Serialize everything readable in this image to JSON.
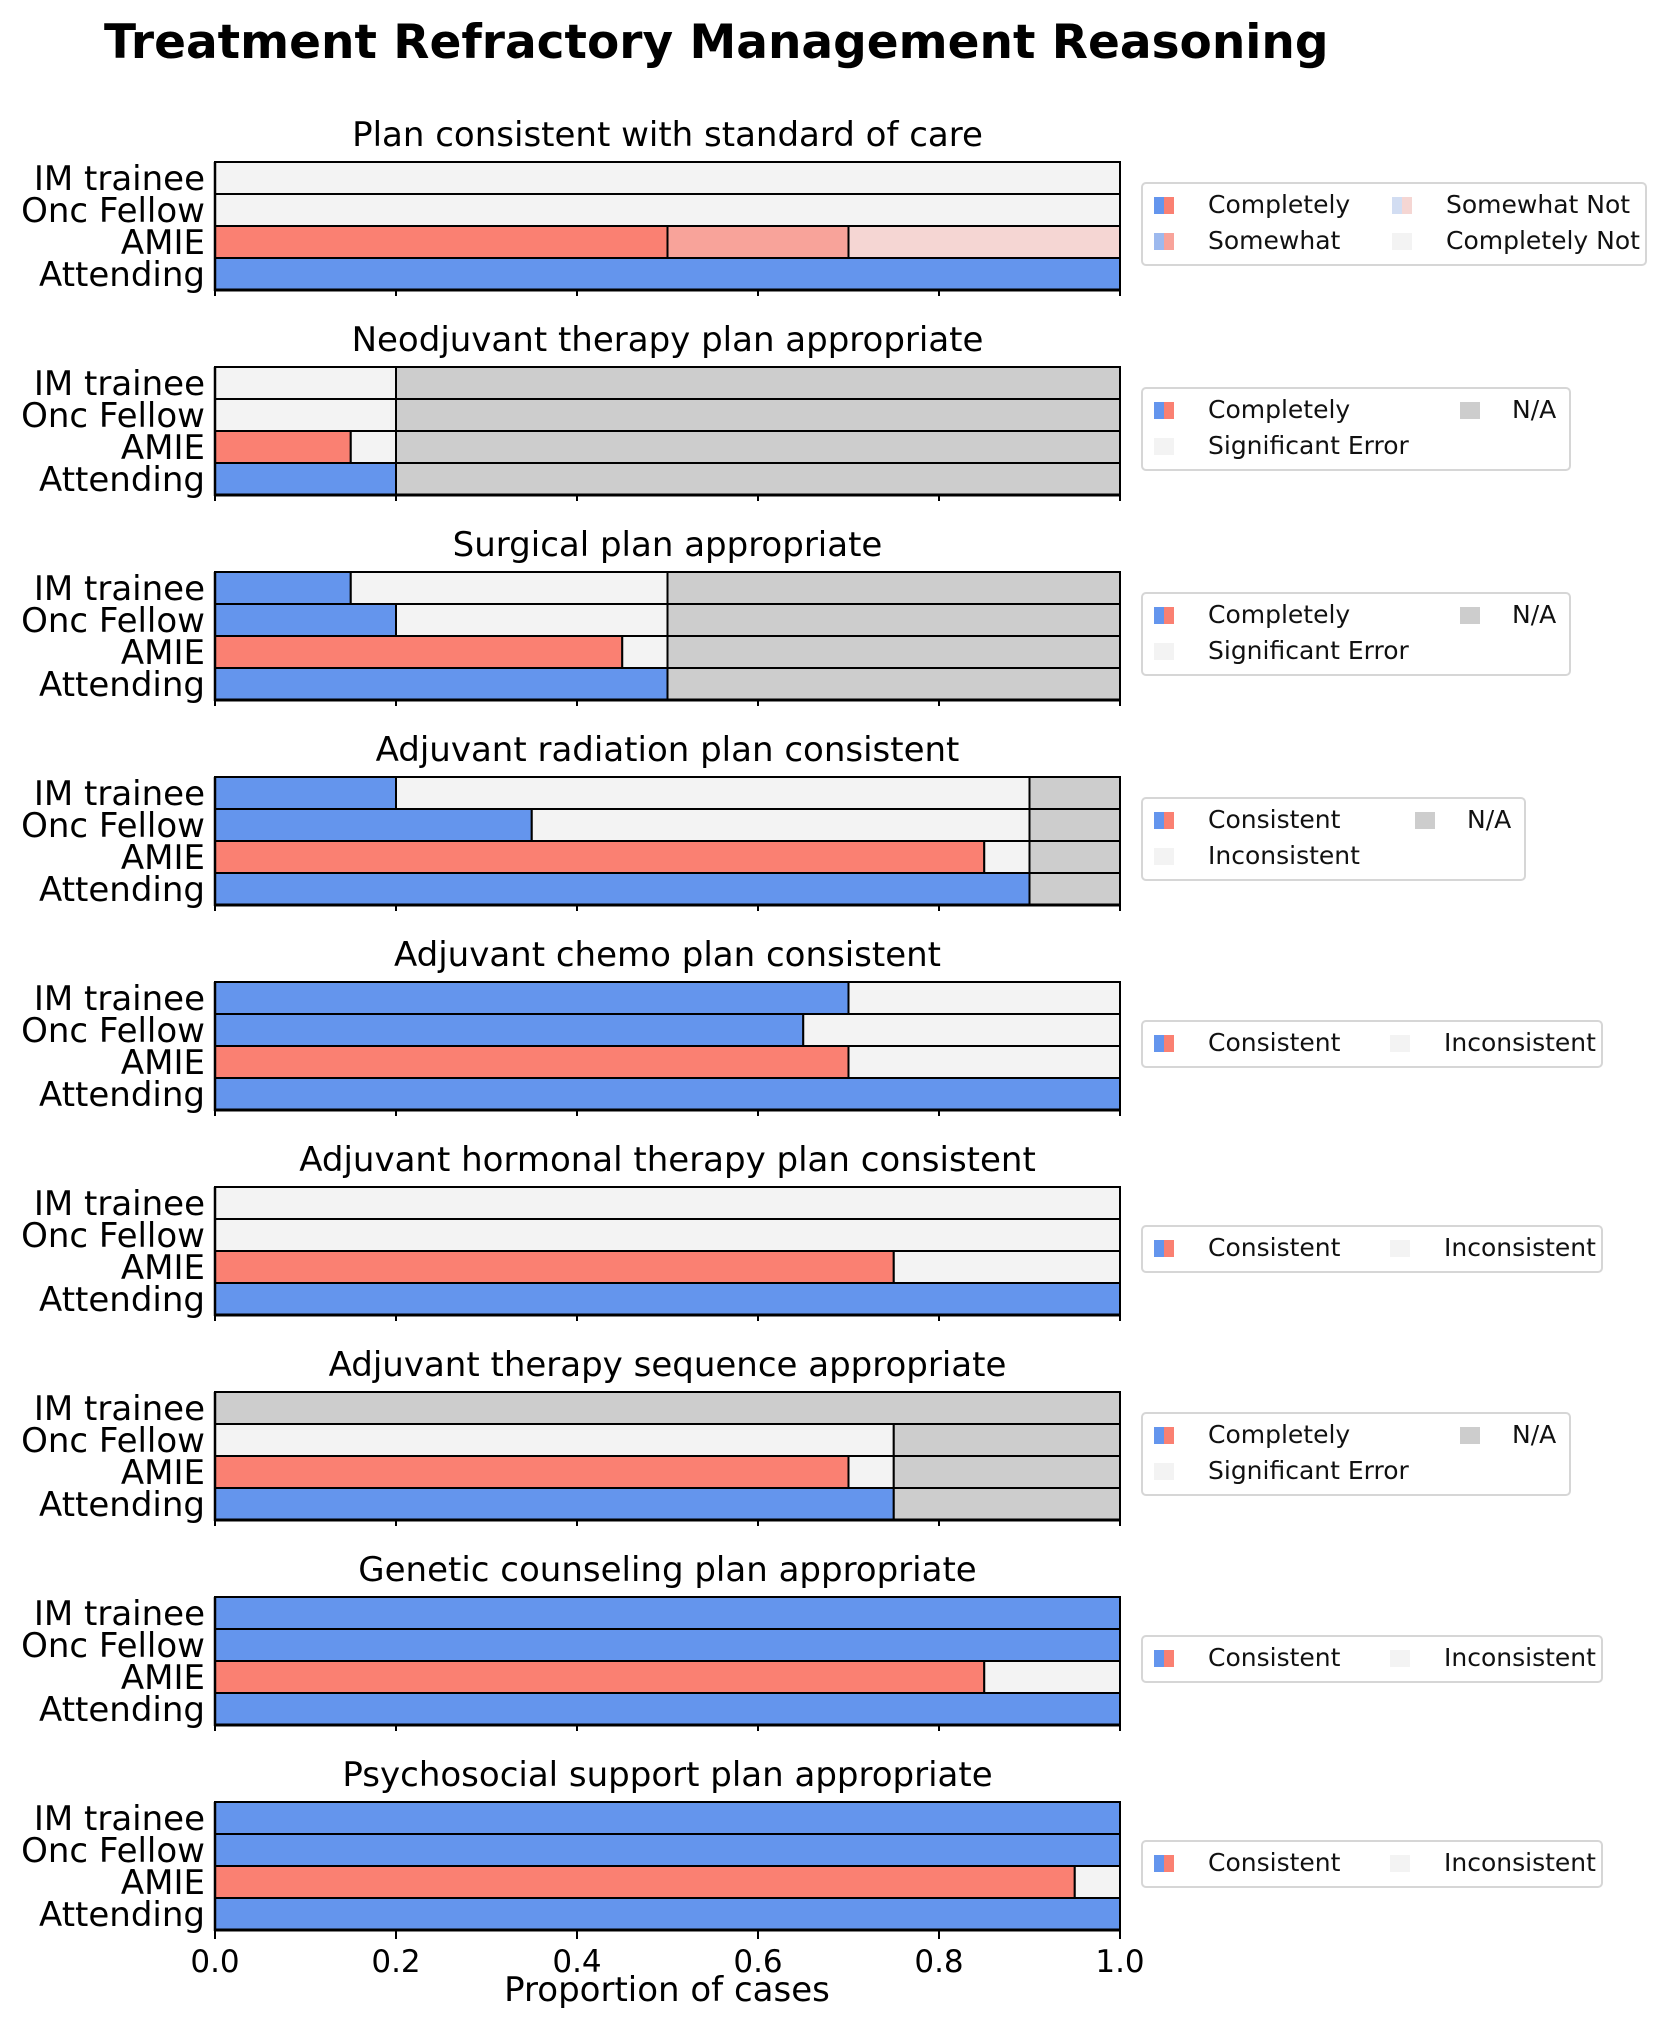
{
  "title": "Treatment Refractory Management Reasoning",
  "colors": {
    "human": "#6495ED",
    "amie": "#FA8072",
    "amie_somewhat": "#F8A39A",
    "amie_somewhat_not": "#F5D6D3",
    "human_somewhat": "#9DB9EE",
    "human_somewhat_not": "#D2DDF2",
    "completely_not": "#F3F3F3",
    "na": "#CDCDCD"
  },
  "chart_data": [
    {
      "type": "bar",
      "orientation": "horizontal-stacked",
      "title": "Plan consistent with standard of care",
      "categories": [
        "IM trainee",
        "Onc Fellow",
        "AMIE",
        "Attending"
      ],
      "legend": [
        {
          "label": "Completely",
          "swatch": "split"
        },
        {
          "label": "Somewhat",
          "swatch": "split-somewhat"
        },
        {
          "label": "Somewhat Not",
          "swatch": "split-somewhat-not"
        },
        {
          "label": "Completely Not",
          "swatch": "completely_not"
        }
      ],
      "legend_columns": 2,
      "series": [
        {
          "name": "Completely",
          "values": [
            0.0,
            0.0,
            0.5,
            1.0
          ]
        },
        {
          "name": "Somewhat",
          "values": [
            0.0,
            0.0,
            0.2,
            0.0
          ]
        },
        {
          "name": "Somewhat Not",
          "values": [
            0.0,
            0.0,
            0.3,
            0.0
          ]
        },
        {
          "name": "Completely Not",
          "values": [
            1.0,
            1.0,
            0.0,
            0.0
          ]
        }
      ],
      "xlim": [
        0,
        1
      ]
    },
    {
      "type": "bar",
      "orientation": "horizontal-stacked",
      "title": "Neodjuvant therapy plan appropriate",
      "categories": [
        "IM trainee",
        "Onc Fellow",
        "AMIE",
        "Attending"
      ],
      "legend": [
        {
          "label": "Completely",
          "swatch": "split"
        },
        {
          "label": "Significant Error",
          "swatch": "completely_not"
        },
        {
          "label": "N/A",
          "swatch": "na"
        }
      ],
      "legend_columns": 2,
      "series": [
        {
          "name": "Completely",
          "values": [
            0.0,
            0.0,
            0.15,
            0.2
          ]
        },
        {
          "name": "Significant Error",
          "values": [
            0.2,
            0.2,
            0.05,
            0.0
          ]
        },
        {
          "name": "N/A",
          "values": [
            0.8,
            0.8,
            0.8,
            0.8
          ]
        }
      ],
      "xlim": [
        0,
        1
      ]
    },
    {
      "type": "bar",
      "orientation": "horizontal-stacked",
      "title": "Surgical plan appropriate",
      "categories": [
        "IM trainee",
        "Onc Fellow",
        "AMIE",
        "Attending"
      ],
      "legend": [
        {
          "label": "Completely",
          "swatch": "split"
        },
        {
          "label": "Significant Error",
          "swatch": "completely_not"
        },
        {
          "label": "N/A",
          "swatch": "na"
        }
      ],
      "legend_columns": 2,
      "series": [
        {
          "name": "Completely",
          "values": [
            0.15,
            0.2,
            0.45,
            0.5
          ]
        },
        {
          "name": "Significant Error",
          "values": [
            0.35,
            0.3,
            0.05,
            0.0
          ]
        },
        {
          "name": "N/A",
          "values": [
            0.5,
            0.5,
            0.5,
            0.5
          ]
        }
      ],
      "xlim": [
        0,
        1
      ]
    },
    {
      "type": "bar",
      "orientation": "horizontal-stacked",
      "title": "Adjuvant radiation plan consistent",
      "categories": [
        "IM trainee",
        "Onc Fellow",
        "AMIE",
        "Attending"
      ],
      "legend": [
        {
          "label": "Consistent",
          "swatch": "split"
        },
        {
          "label": "Inconsistent",
          "swatch": "completely_not"
        },
        {
          "label": "N/A",
          "swatch": "na"
        }
      ],
      "legend_columns": 2,
      "series": [
        {
          "name": "Consistent",
          "values": [
            0.2,
            0.35,
            0.85,
            0.9
          ]
        },
        {
          "name": "Inconsistent",
          "values": [
            0.7,
            0.55,
            0.05,
            0.0
          ]
        },
        {
          "name": "N/A",
          "values": [
            0.1,
            0.1,
            0.1,
            0.1
          ]
        }
      ],
      "xlim": [
        0,
        1
      ]
    },
    {
      "type": "bar",
      "orientation": "horizontal-stacked",
      "title": "Adjuvant chemo plan consistent",
      "categories": [
        "IM trainee",
        "Onc Fellow",
        "AMIE",
        "Attending"
      ],
      "legend": [
        {
          "label": "Consistent",
          "swatch": "split"
        },
        {
          "label": "Inconsistent",
          "swatch": "completely_not"
        }
      ],
      "legend_columns": 2,
      "series": [
        {
          "name": "Consistent",
          "values": [
            0.7,
            0.65,
            0.7,
            1.0
          ]
        },
        {
          "name": "Inconsistent",
          "values": [
            0.3,
            0.35,
            0.3,
            0.0
          ]
        }
      ],
      "xlim": [
        0,
        1
      ]
    },
    {
      "type": "bar",
      "orientation": "horizontal-stacked",
      "title": "Adjuvant hormonal therapy plan consistent",
      "categories": [
        "IM trainee",
        "Onc Fellow",
        "AMIE",
        "Attending"
      ],
      "legend": [
        {
          "label": "Consistent",
          "swatch": "split"
        },
        {
          "label": "Inconsistent",
          "swatch": "completely_not"
        }
      ],
      "legend_columns": 2,
      "series": [
        {
          "name": "Consistent",
          "values": [
            0.0,
            0.0,
            0.75,
            1.0
          ]
        },
        {
          "name": "Inconsistent",
          "values": [
            1.0,
            1.0,
            0.25,
            0.0
          ]
        }
      ],
      "xlim": [
        0,
        1
      ]
    },
    {
      "type": "bar",
      "orientation": "horizontal-stacked",
      "title": "Adjuvant therapy sequence appropriate",
      "categories": [
        "IM trainee",
        "Onc Fellow",
        "AMIE",
        "Attending"
      ],
      "legend": [
        {
          "label": "Completely",
          "swatch": "split"
        },
        {
          "label": "Significant Error",
          "swatch": "completely_not"
        },
        {
          "label": "N/A",
          "swatch": "na"
        }
      ],
      "legend_columns": 2,
      "series": [
        {
          "name": "Completely",
          "values": [
            0.0,
            0.0,
            0.7,
            0.75
          ]
        },
        {
          "name": "Significant Error",
          "values": [
            0.0,
            0.75,
            0.05,
            0.0
          ]
        },
        {
          "name": "N/A",
          "values": [
            1.0,
            0.25,
            0.25,
            0.25
          ]
        }
      ],
      "xlim": [
        0,
        1
      ]
    },
    {
      "type": "bar",
      "orientation": "horizontal-stacked",
      "title": "Genetic counseling plan appropriate",
      "categories": [
        "IM trainee",
        "Onc Fellow",
        "AMIE",
        "Attending"
      ],
      "legend": [
        {
          "label": "Consistent",
          "swatch": "split"
        },
        {
          "label": "Inconsistent",
          "swatch": "completely_not"
        }
      ],
      "legend_columns": 2,
      "series": [
        {
          "name": "Consistent",
          "values": [
            1.0,
            1.0,
            0.85,
            1.0
          ]
        },
        {
          "name": "Inconsistent",
          "values": [
            0.0,
            0.0,
            0.15,
            0.0
          ]
        }
      ],
      "xlim": [
        0,
        1
      ]
    },
    {
      "type": "bar",
      "orientation": "horizontal-stacked",
      "title": "Psychosocial support plan appropriate",
      "categories": [
        "IM trainee",
        "Onc Fellow",
        "AMIE",
        "Attending"
      ],
      "legend": [
        {
          "label": "Consistent",
          "swatch": "split"
        },
        {
          "label": "Inconsistent",
          "swatch": "completely_not"
        }
      ],
      "legend_columns": 2,
      "series": [
        {
          "name": "Consistent",
          "values": [
            1.0,
            1.0,
            0.95,
            1.0
          ]
        },
        {
          "name": "Inconsistent",
          "values": [
            0.0,
            0.0,
            0.05,
            0.0
          ]
        }
      ],
      "xlim": [
        0,
        1
      ]
    }
  ],
  "x_axis": {
    "label": "Proportion of cases",
    "ticks": [
      "0.0",
      "0.2",
      "0.4",
      "0.6",
      "0.8",
      "1.0"
    ]
  }
}
